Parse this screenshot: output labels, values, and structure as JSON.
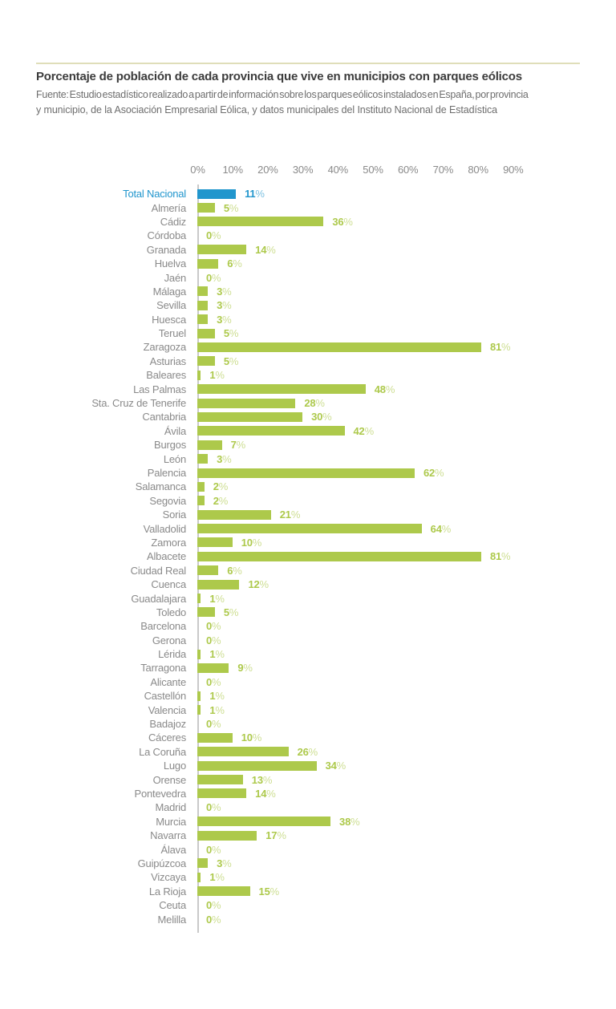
{
  "header": {
    "source_lines": [
      "Fuente: Estudio estadístico realizado a partir de información sobre los parques eólicos instalados en España, por provincia",
      "y municipio, de la Asociación Empresarial Eólica, y datos municipales del Instituto Nacional de Estadística"
    ]
  },
  "colors": {
    "highlight": "#2196cd",
    "bar": "#adc94b",
    "label": "#8a8a8a",
    "axis_text": "#8a8a8a",
    "axis_line": "#c9c9c9",
    "title": "#3c3c3c",
    "source": "#6e6e6e",
    "rule": "#dfdeb9"
  },
  "chart_data": {
    "type": "bar",
    "orientation": "horizontal",
    "title": "Porcentaje de población de cada provincia que vive en municipios con parques eólicos",
    "unit": "%",
    "x_ticks": [
      "0%",
      "10%",
      "20%",
      "30%",
      "40%",
      "50%",
      "60%",
      "70%",
      "80%",
      "90%"
    ],
    "xlim": [
      0,
      90
    ],
    "grid": false,
    "legend": "none",
    "highlight_index": 0,
    "highlight_note": "Total Nacional shown in blue, provinces in green",
    "categories": [
      "Total Nacional",
      "Almería",
      "Cádiz",
      "Córdoba",
      "Granada",
      "Huelva",
      "Jaén",
      "Málaga",
      "Sevilla",
      "Huesca",
      "Teruel",
      "Zaragoza",
      "Asturias",
      "Baleares",
      "Las Palmas",
      "Sta. Cruz de Tenerife",
      "Cantabria",
      "Ávila",
      "Burgos",
      "León",
      "Palencia",
      "Salamanca",
      "Segovia",
      "Soria",
      "Valladolid",
      "Zamora",
      "Albacete",
      "Ciudad Real",
      "Cuenca",
      "Guadalajara",
      "Toledo",
      "Barcelona",
      "Gerona",
      "Lérida",
      "Tarragona",
      "Alicante",
      "Castellón",
      "Valencia",
      "Badajoz",
      "Cáceres",
      "La Coruña",
      "Lugo",
      "Orense",
      "Pontevedra",
      "Madrid",
      "Murcia",
      "Navarra",
      "Álava",
      "Guipúzcoa",
      "Vizcaya",
      "La Rioja",
      "Ceuta",
      "Melilla"
    ],
    "values": [
      11,
      5,
      36,
      0,
      14,
      6,
      0,
      3,
      3,
      3,
      5,
      81,
      5,
      1,
      48,
      28,
      30,
      42,
      7,
      3,
      62,
      2,
      2,
      21,
      64,
      10,
      81,
      6,
      12,
      1,
      5,
      0,
      0,
      1,
      9,
      0,
      1,
      1,
      0,
      10,
      26,
      34,
      13,
      14,
      0,
      38,
      17,
      0,
      3,
      1,
      15,
      0,
      0
    ]
  }
}
